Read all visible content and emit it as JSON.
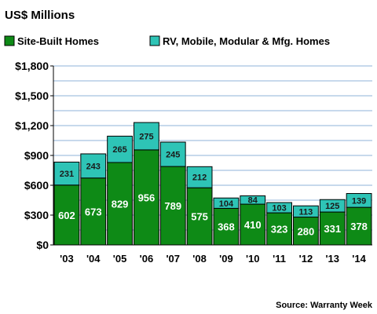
{
  "chart_data": {
    "type": "bar",
    "stacked": true,
    "title": "US$ Millions",
    "categories": [
      "'03",
      "'04",
      "'05",
      "'06",
      "'07",
      "'08",
      "'09",
      "'10",
      "'11",
      "'12",
      "'13",
      "'14"
    ],
    "series": [
      {
        "name": "Site-Built Homes",
        "color": "#0e8a16",
        "values": [
          602,
          673,
          829,
          956,
          789,
          575,
          368,
          410,
          323,
          280,
          331,
          378
        ]
      },
      {
        "name": "RV, Mobile, Modular & Mfg. Homes",
        "color": "#2ec4b6",
        "values": [
          231,
          243,
          265,
          275,
          245,
          212,
          104,
          84,
          103,
          113,
          125,
          139
        ]
      }
    ],
    "ylim": [
      0,
      1800
    ],
    "yticks": [
      0,
      300,
      600,
      900,
      1200,
      1500,
      1800
    ],
    "ytick_labels": [
      "$0",
      "$300",
      "$600",
      "$900",
      "$1,200",
      "$1,500",
      "$1,800"
    ],
    "grid": true,
    "legend_position": "top",
    "source": "Source: Warranty Week"
  }
}
